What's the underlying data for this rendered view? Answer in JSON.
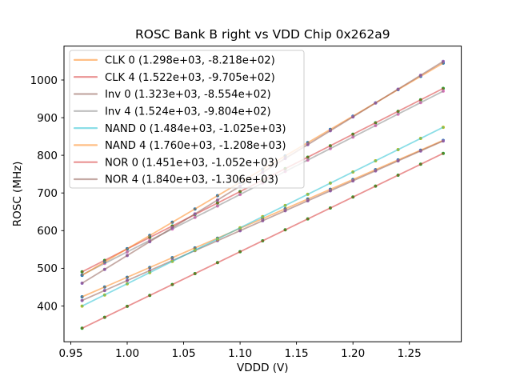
{
  "figure": {
    "background_color": "#ffffff",
    "axes_frame_color": "#000000",
    "legend_border_color": "#cccccc",
    "legend_background_color": "#ffffff",
    "legend_background_alpha": 0.8
  },
  "chart_data": {
    "type": "scatter",
    "title": "ROSC Bank B right vs VDD Chip 0x262a9",
    "xlabel": "VDDD (V)",
    "ylabel": "ROSC (MHz)",
    "xlim": [
      0.944,
      1.296
    ],
    "ylim": [
      305,
      1090
    ],
    "xticks": [
      0.95,
      1.0,
      1.05,
      1.1,
      1.15,
      1.2,
      1.25
    ],
    "xtick_labels": [
      "0.95",
      "1.00",
      "1.05",
      "1.10",
      "1.15",
      "1.20",
      "1.25"
    ],
    "yticks": [
      400,
      500,
      600,
      700,
      800,
      900,
      1000
    ],
    "ytick_labels": [
      "400",
      "500",
      "600",
      "700",
      "800",
      "900",
      "1000"
    ],
    "grid": false,
    "legend_position": "upper left",
    "line_alpha": 0.5,
    "x": [
      0.96,
      0.98,
      1.0,
      1.02,
      1.04,
      1.06,
      1.08,
      1.1,
      1.12,
      1.14,
      1.16,
      1.18,
      1.2,
      1.22,
      1.24,
      1.26,
      1.28
    ],
    "series": [
      {
        "name": "CLK 0",
        "label": "CLK 0 (1.298e+03, -8.218e+02)",
        "slope": 1298,
        "intercept": -821.8,
        "line_color": "#ff7f0e",
        "marker_color": "#1f77b4"
      },
      {
        "name": "CLK 4",
        "label": "CLK 4 (1.522e+03, -9.705e+02)",
        "slope": 1522,
        "intercept": -970.5,
        "line_color": "#d62728",
        "marker_color": "#2ca02c"
      },
      {
        "name": "Inv 0",
        "label": "Inv 0 (1.323e+03, -8.554e+02)",
        "slope": 1323,
        "intercept": -855.4,
        "line_color": "#8c564b",
        "marker_color": "#9467bd"
      },
      {
        "name": "Inv 4",
        "label": "Inv 4 (1.524e+03, -9.804e+02)",
        "slope": 1524,
        "intercept": -980.4,
        "line_color": "#7f7f7f",
        "marker_color": "#e377c2"
      },
      {
        "name": "NAND 0",
        "label": "NAND 0 (1.484e+03, -1.025e+03)",
        "slope": 1484,
        "intercept": -1025,
        "line_color": "#17becf",
        "marker_color": "#bcbd22"
      },
      {
        "name": "NAND 4",
        "label": "NAND 4 (1.760e+03, -1.208e+03)",
        "slope": 1760,
        "intercept": -1208,
        "line_color": "#ff7f0e",
        "marker_color": "#1f77b4"
      },
      {
        "name": "NOR 0",
        "label": "NOR 0 (1.451e+03, -1.052e+03)",
        "slope": 1451,
        "intercept": -1052,
        "line_color": "#d62728",
        "marker_color": "#2ca02c"
      },
      {
        "name": "NOR 4",
        "label": "NOR 4 (1.840e+03, -1.306e+03)",
        "slope": 1840,
        "intercept": -1306,
        "line_color": "#8c564b",
        "marker_color": "#9467bd"
      }
    ]
  }
}
